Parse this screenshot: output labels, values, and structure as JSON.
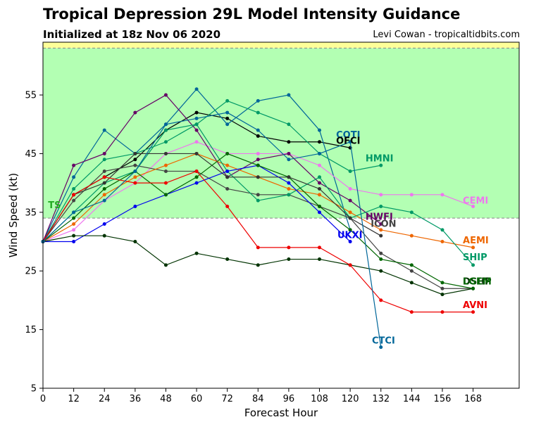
{
  "header": {
    "title": "Tropical Depression 29L Model Intensity Guidance",
    "subtitle": "Initialized at 18z Nov 06 2020",
    "credit": "Levi Cowan - tropicaltidbits.com"
  },
  "chart_data": {
    "type": "line",
    "title": "Tropical Depression 29L Model Intensity Guidance",
    "subtitle": "Initialized at 18z Nov 06 2020",
    "xlabel": "Forecast Hour",
    "ylabel": "Wind Speed (kt)",
    "xlim": [
      0,
      186
    ],
    "ylim": [
      5,
      64
    ],
    "xticks": [
      0,
      12,
      24,
      36,
      48,
      60,
      72,
      84,
      96,
      108,
      120,
      132,
      144,
      156,
      168
    ],
    "yticks": [
      5,
      15,
      25,
      35,
      45,
      55
    ],
    "bands": [
      {
        "label": "TS",
        "from": 34,
        "to": 63,
        "color": "#b3ffb3",
        "label_color": "#22aa22"
      },
      {
        "label": "",
        "from": 63,
        "to": 64,
        "color": "#ffff99"
      }
    ],
    "threshold_lines": [
      34,
      63
    ],
    "series": [
      {
        "name": "OFCI",
        "color": "#000000",
        "x": [
          0,
          12,
          24,
          36,
          48,
          60,
          72,
          84,
          96,
          108,
          120
        ],
        "y": [
          30,
          38,
          41,
          44,
          49,
          52,
          51,
          48,
          47,
          47,
          46
        ]
      },
      {
        "name": "COTI",
        "color": "#006699",
        "x": [
          0,
          12,
          24,
          36,
          48,
          60,
          72,
          84,
          96,
          108,
          120
        ],
        "y": [
          30,
          41,
          49,
          45,
          50,
          56,
          50,
          54,
          55,
          49,
          32
        ]
      },
      {
        "name": "HMNI",
        "color": "#009966",
        "x": [
          0,
          12,
          24,
          36,
          48,
          60,
          72,
          84,
          96,
          108,
          120,
          132
        ],
        "y": [
          30,
          39,
          44,
          45,
          47,
          50,
          54,
          52,
          50,
          45,
          42,
          43
        ]
      },
      {
        "name": "CEMI",
        "color": "#ee77ee",
        "x": [
          0,
          12,
          24,
          36,
          48,
          60,
          72,
          84,
          96,
          108,
          120,
          132,
          144,
          156,
          168
        ],
        "y": [
          30,
          32,
          37,
          40,
          45,
          47,
          45,
          45,
          45,
          43,
          39,
          38,
          38,
          38,
          36
        ]
      },
      {
        "name": "HWFI",
        "color": "#660066",
        "x": [
          0,
          12,
          24,
          36,
          48,
          60,
          72,
          84,
          96,
          108,
          120,
          132
        ],
        "y": [
          30,
          43,
          45,
          52,
          55,
          49,
          41,
          44,
          45,
          40,
          37,
          33
        ]
      },
      {
        "name": "ICON",
        "color": "#444444",
        "x": [
          0,
          12,
          24,
          36,
          48,
          60,
          72,
          84,
          96,
          108,
          120,
          132,
          144,
          156,
          168
        ],
        "y": [
          30,
          37,
          42,
          43,
          42,
          42,
          39,
          38,
          38,
          36,
          34,
          28,
          25,
          22,
          22
        ]
      },
      {
        "name": "AEMI",
        "color": "#ee6600",
        "x": [
          0,
          12,
          24,
          36,
          48,
          60,
          72,
          84,
          96,
          108,
          120,
          132,
          144,
          156,
          168
        ],
        "y": [
          30,
          33,
          38,
          41,
          43,
          45,
          43,
          41,
          39,
          38,
          35,
          32,
          31,
          30,
          29
        ]
      },
      {
        "name": "SHIP",
        "color": "#009966",
        "x": [
          0,
          12,
          24,
          36,
          48,
          60,
          72,
          84,
          96,
          108,
          120,
          132,
          144,
          156,
          168
        ],
        "y": [
          30,
          35,
          40,
          42,
          49,
          50,
          42,
          37,
          38,
          41,
          34,
          36,
          35,
          32,
          26
        ]
      },
      {
        "name": "UKXI",
        "color": "#0000ee",
        "x": [
          0,
          12,
          24,
          36,
          48,
          60,
          72,
          84,
          96,
          108,
          120
        ],
        "y": [
          30,
          30,
          33,
          36,
          38,
          40,
          42,
          43,
          40,
          35,
          30
        ]
      },
      {
        "name": "DSHP",
        "color": "#003300",
        "x": [
          0,
          12,
          24,
          36,
          48,
          60,
          72,
          84,
          96,
          108,
          120,
          132,
          144,
          156,
          168
        ],
        "y": [
          30,
          31,
          31,
          30,
          26,
          28,
          27,
          26,
          27,
          27,
          26,
          25,
          23,
          21,
          22
        ]
      },
      {
        "name": "LGEM",
        "color": "#006600",
        "x": [
          0,
          12,
          24,
          36,
          48,
          60,
          72,
          84,
          96,
          108,
          120,
          132,
          144,
          156,
          168
        ],
        "y": [
          30,
          34,
          39,
          42,
          38,
          41,
          45,
          43,
          41,
          36,
          32,
          27,
          26,
          23,
          22
        ]
      },
      {
        "name": "GEMI",
        "color": "#333333",
        "x": [
          0,
          12,
          24,
          36,
          48,
          60,
          72,
          84,
          96,
          108,
          120,
          132
        ],
        "y": [
          30,
          38,
          40,
          45,
          45,
          45,
          41,
          41,
          41,
          39,
          34,
          31
        ]
      },
      {
        "name": "AVNI",
        "color": "#ee0000",
        "x": [
          0,
          12,
          24,
          36,
          48,
          60,
          72,
          84,
          96,
          108,
          120,
          132,
          144,
          156,
          168
        ],
        "y": [
          30,
          38,
          41,
          40,
          40,
          42,
          36,
          29,
          29,
          29,
          26,
          20,
          18,
          18,
          18
        ]
      },
      {
        "name": "CTCI",
        "color": "#006699",
        "x": [
          0,
          12,
          24,
          36,
          48,
          60,
          72,
          84,
          96,
          108,
          120,
          132
        ],
        "y": [
          30,
          35,
          37,
          42,
          50,
          51,
          52,
          49,
          44,
          45,
          47,
          12
        ]
      }
    ],
    "end_labels": [
      {
        "text": "COTI",
        "color": "#006699",
        "x": 114.5,
        "y": 48.3
      },
      {
        "text": "OFCI",
        "color": "#000000",
        "x": 114.5,
        "y": 47.3
      },
      {
        "text": "HMNI",
        "color": "#009966",
        "x": 126,
        "y": 44.3
      },
      {
        "text": "CEMI",
        "color": "#ee77ee",
        "x": 164,
        "y": 37.1
      },
      {
        "text": "TS",
        "color": "#22aa22",
        "x": 2,
        "y": 36.3
      },
      {
        "text": "HWFI",
        "color": "#660066",
        "x": 126,
        "y": 34.3
      },
      {
        "text": "ICON",
        "color": "#444444",
        "x": 128,
        "y": 33.1
      },
      {
        "text": "UKXI",
        "color": "#0000ee",
        "x": 115,
        "y": 31.2
      },
      {
        "text": "AEMI",
        "color": "#ee6600",
        "x": 164,
        "y": 30.3
      },
      {
        "text": "SHIP",
        "color": "#009966",
        "x": 164,
        "y": 27.4
      },
      {
        "text": "DSHP",
        "color": "#003300",
        "x": 164,
        "y": 23.3
      },
      {
        "text": "LGEM",
        "color": "#006600",
        "x": 164,
        "y": 23.3
      },
      {
        "text": "AVNI",
        "color": "#ee0000",
        "x": 164,
        "y": 19.3
      },
      {
        "text": "CTCI",
        "color": "#006699",
        "x": 128.5,
        "y": 13.2
      }
    ]
  }
}
